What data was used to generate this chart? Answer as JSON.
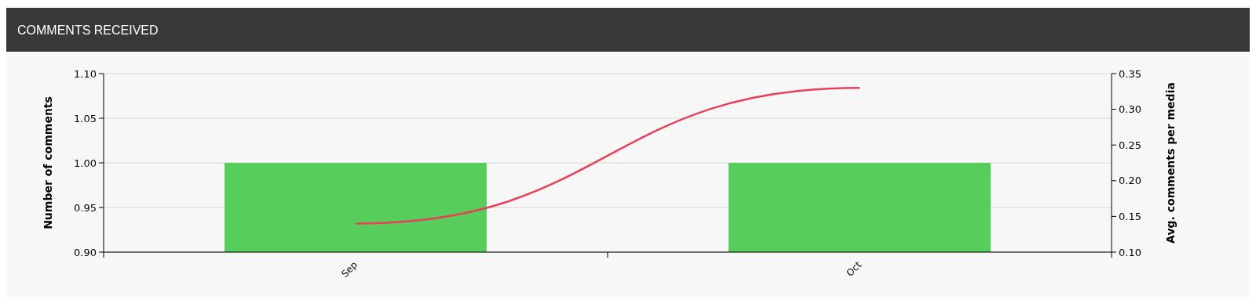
{
  "chart_data": {
    "type": "bar",
    "title": "COMMENTS RECEIVED",
    "ylabel": "Number of comments",
    "y2label": "Avg. comments per media",
    "categories": [
      "Sep",
      "Oct"
    ],
    "series": [
      {
        "color": "#57cd5b",
        "values": [
          1.0,
          1.0
        ]
      },
      {
        "type": "line",
        "axis": "y2",
        "color": "#e8405a",
        "values": [
          0.14,
          0.33
        ]
      }
    ],
    "ylim": [
      0.9,
      1.1
    ],
    "yticks": [
      {
        "value": 0.9,
        "label": "0.90"
      },
      {
        "value": 0.95,
        "label": "0.95"
      },
      {
        "value": 1.0,
        "label": "1.00"
      },
      {
        "value": 1.05,
        "label": "1.05"
      },
      {
        "value": 1.1,
        "label": "1.10"
      }
    ],
    "y2lim": [
      0.1,
      0.35
    ],
    "y2ticks": [
      {
        "value": 0.1,
        "label": "0.10"
      },
      {
        "value": 0.15,
        "label": "0.15"
      },
      {
        "value": 0.2,
        "label": "0.20"
      },
      {
        "value": 0.25,
        "label": "0.25"
      },
      {
        "value": 0.3,
        "label": "0.30"
      },
      {
        "value": 0.35,
        "label": "0.35"
      }
    ],
    "grid": "y",
    "marker": "none",
    "line_style": "solid"
  }
}
